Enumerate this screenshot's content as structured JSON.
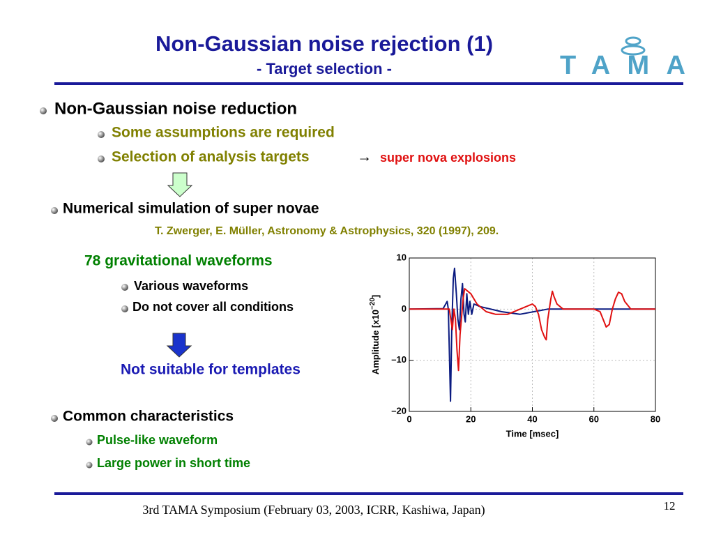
{
  "header": {
    "title": "Non-Gaussian noise rejection (1)",
    "subtitle": "- Target selection -",
    "logo": "TAMA"
  },
  "body": {
    "reduction": "Non-Gaussian noise reduction",
    "assumptions": "Some assumptions are required",
    "selection": "Selection of analysis targets",
    "arrow": "→",
    "targets": "super nova explosions",
    "simulation": "Numerical simulation of super novae",
    "reference": "T. Zwerger, E. Müller,  Astronomy & Astrophysics, 320 (1997), 209.",
    "waveforms": "78 gravitational waveforms",
    "various": "Various waveforms",
    "conditions": "Do not cover all conditions",
    "unsuitable": "Not suitable for templates",
    "common": "Common characteristics",
    "pulse": "Pulse-like waveform",
    "power": "Large power in short time"
  },
  "footer": {
    "event": "3rd TAMA Symposium (February 03, 2003, ICRR, Kashiwa, Japan)",
    "page": "12"
  },
  "chart_data": {
    "type": "line",
    "xlabel": "Time  [msec]",
    "ylabel": {
      "text": "Amplitude  [x10",
      "sup": "−20",
      "end": "]"
    },
    "xlim": [
      0,
      80
    ],
    "xticks": [
      0,
      20,
      40,
      60,
      80
    ],
    "ylim": [
      -20,
      10
    ],
    "yticks": [
      {
        "value": -20,
        "label": "–20"
      },
      {
        "value": -10,
        "label": "–10"
      },
      0,
      10
    ],
    "grid": true,
    "series": [
      {
        "color": "#0a1a80",
        "x": [
          0,
          11,
          12.3,
          12.7,
          13,
          13.4,
          13.8,
          14.3,
          14.7,
          15.3,
          15.8,
          16.3,
          16.8,
          17.3,
          17.8,
          18.2,
          18.7,
          19.2,
          19.7,
          20.3,
          21,
          23,
          30,
          36,
          45,
          60,
          80
        ],
        "values": [
          0,
          0.1,
          1.5,
          0,
          -8,
          -18,
          -4,
          6,
          8,
          3,
          -2,
          -4,
          2,
          5,
          -1,
          -2.5,
          3,
          -1,
          1.5,
          -1,
          1,
          0.5,
          -0.5,
          -1,
          0,
          0,
          0
        ]
      },
      {
        "color": "#e01010",
        "x": [
          0,
          13,
          13.5,
          14,
          14.5,
          15,
          15.5,
          16,
          16.5,
          17.5,
          18,
          20,
          22,
          25,
          28,
          32,
          36,
          40,
          41,
          42,
          43,
          44,
          44.5,
          45,
          46,
          46.5,
          47,
          48,
          50,
          55,
          60,
          62,
          63,
          64,
          65,
          66,
          67,
          68,
          69,
          70,
          72,
          80
        ],
        "values": [
          0,
          0,
          -2,
          -4,
          0,
          -2,
          -8,
          -12,
          -5,
          2,
          4,
          3,
          1,
          -0.5,
          -1,
          -1,
          0,
          1,
          0.5,
          -1,
          -4,
          -5.5,
          -6,
          -2,
          2,
          3.5,
          2.5,
          1,
          0,
          0,
          0,
          -0.5,
          -2,
          -3.5,
          -3,
          0,
          2,
          3.3,
          3,
          1.5,
          0,
          0
        ]
      }
    ]
  }
}
